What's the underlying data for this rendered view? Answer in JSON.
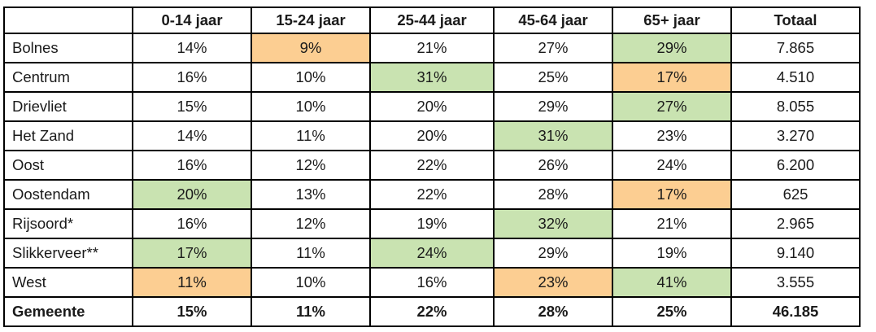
{
  "colors": {
    "highlight_green": "#c9e3b1",
    "highlight_orange": "#fcce92",
    "border": "#000000",
    "text": "#1a1a1a"
  },
  "chart_data": {
    "type": "table",
    "title": "",
    "columns": [
      "",
      "0-14 jaar",
      "15-24 jaar",
      "25-44 jaar",
      "45-64 jaar",
      "65+ jaar",
      "Totaal"
    ],
    "rows": [
      {
        "name": "Bolnes",
        "values": [
          "14%",
          "9%",
          "21%",
          "27%",
          "29%",
          "7.865"
        ],
        "highlights": [
          "",
          "orange",
          "",
          "",
          "green",
          ""
        ],
        "bold": false
      },
      {
        "name": "Centrum",
        "values": [
          "16%",
          "10%",
          "31%",
          "25%",
          "17%",
          "4.510"
        ],
        "highlights": [
          "",
          "",
          "green",
          "",
          "orange",
          ""
        ],
        "bold": false
      },
      {
        "name": "Drievliet",
        "values": [
          "15%",
          "10%",
          "20%",
          "29%",
          "27%",
          "8.055"
        ],
        "highlights": [
          "",
          "",
          "",
          "",
          "green",
          ""
        ],
        "bold": false
      },
      {
        "name": "Het Zand",
        "values": [
          "14%",
          "11%",
          "20%",
          "31%",
          "23%",
          "3.270"
        ],
        "highlights": [
          "",
          "",
          "",
          "green",
          "",
          ""
        ],
        "bold": false
      },
      {
        "name": "Oost",
        "values": [
          "16%",
          "12%",
          "22%",
          "26%",
          "24%",
          "6.200"
        ],
        "highlights": [
          "",
          "",
          "",
          "",
          "",
          ""
        ],
        "bold": false
      },
      {
        "name": "Oostendam",
        "values": [
          "20%",
          "13%",
          "22%",
          "28%",
          "17%",
          "625"
        ],
        "highlights": [
          "green",
          "",
          "",
          "",
          "orange",
          ""
        ],
        "bold": false
      },
      {
        "name": "Rijsoord*",
        "values": [
          "16%",
          "12%",
          "19%",
          "32%",
          "21%",
          "2.965"
        ],
        "highlights": [
          "",
          "",
          "",
          "green",
          "",
          ""
        ],
        "bold": false
      },
      {
        "name": "Slikkerveer**",
        "values": [
          "17%",
          "11%",
          "24%",
          "29%",
          "19%",
          "9.140"
        ],
        "highlights": [
          "green",
          "",
          "green",
          "",
          "",
          ""
        ],
        "bold": false
      },
      {
        "name": "West",
        "values": [
          "11%",
          "10%",
          "16%",
          "23%",
          "41%",
          "3.555"
        ],
        "highlights": [
          "orange",
          "",
          "",
          "orange",
          "green",
          ""
        ],
        "bold": false
      },
      {
        "name": "Gemeente",
        "values": [
          "15%",
          "11%",
          "22%",
          "28%",
          "25%",
          "46.185"
        ],
        "highlights": [
          "",
          "",
          "",
          "",
          "",
          ""
        ],
        "bold": true
      }
    ]
  }
}
